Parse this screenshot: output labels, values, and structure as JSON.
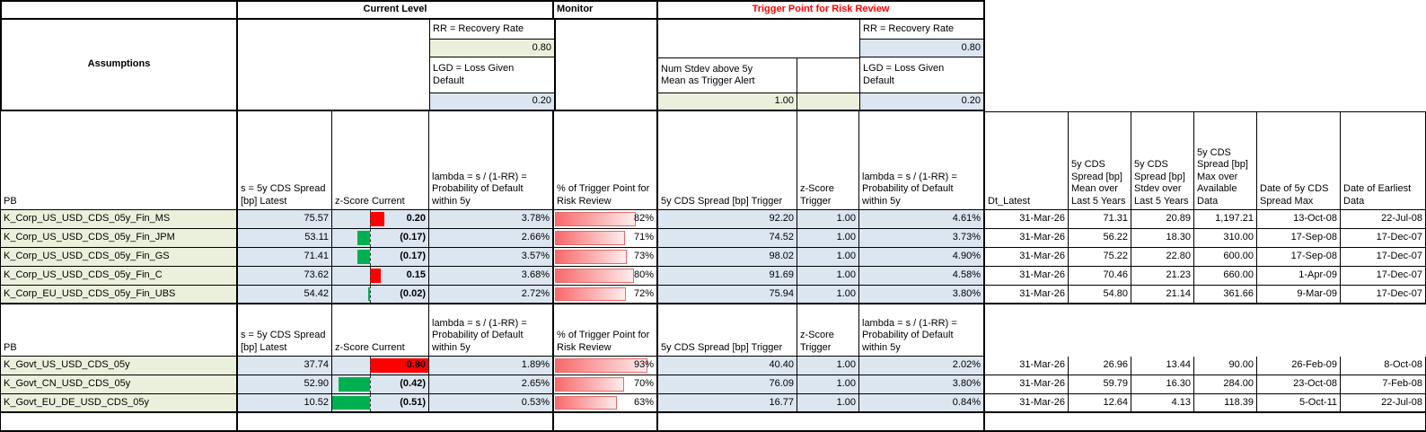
{
  "top": {
    "current_level": "Current Level",
    "monitor": "Monitor",
    "trigger_point": "Trigger Point for Risk Review"
  },
  "assumptions": {
    "title": "Assumptions",
    "current": {
      "rr_label": "RR = Recovery Rate",
      "rr_value": "0.80",
      "lgd_label": "LGD = Loss Given Default",
      "lgd_value": "0.20"
    },
    "monitor_block": {
      "stdev_label": "Num Stdev above 5y Mean as Trigger Alert",
      "stdev_value": "1.00"
    },
    "trigger": {
      "rr_label": "RR = Recovery Rate",
      "rr_value": "0.80",
      "lgd_label": "LGD = Loss Given Default",
      "lgd_value": "0.20"
    }
  },
  "columns": {
    "pb": "PB",
    "spread_latest": "s = 5y CDS Spread [bp] Latest",
    "zscore_current": "z-Score Current",
    "lambda": "lambda = s / (1-RR) = Probability of Default within 5y",
    "pct_trigger": "% of Trigger Point for Risk Review",
    "spread_trigger": "5y CDS Spread [bp] Trigger",
    "zscore_trigger": "z-Score Trigger",
    "lambda_trigger": "lambda = s / (1-RR) = Probability of Default within 5y",
    "dt_latest": "Dt_Latest",
    "mean_5y": "5y CDS Spread [bp] Mean over Last 5 Years",
    "stdev_5y": "5y CDS Spread [bp] Stdev over Last 5 Years",
    "max": "5y CDS Spread [bp] Max over Available Data",
    "date_max": "Date of 5y CDS Spread Max",
    "date_earliest": "Date of Earliest Data"
  },
  "zscore_axis": {
    "min": -0.51,
    "max": 0.8
  },
  "colors": {
    "khaki": "#EBF0DC",
    "blue": "#DCE6F1",
    "bar_positive": "#FF0000",
    "bar_negative": "#00B050",
    "pct_bar": "#F8696B",
    "trigger_header_red": "#FF0000"
  },
  "groups": [
    {
      "rows": [
        {
          "name": "K_Corp_US_USD_CDS_05y_Fin_MS",
          "spread": "75.57",
          "z": 0.2,
          "z_text": "0.20",
          "lambda": "3.78%",
          "pct": 82,
          "pct_text": "82%",
          "trigger": "92.20",
          "z_trigger": "1.00",
          "lambda_trigger": "4.61%",
          "dt_latest": "31-Mar-26",
          "mean_5y": "71.31",
          "stdev_5y": "20.89",
          "max": "1,197.21",
          "date_max": "13-Oct-08",
          "date_earliest": "22-Jul-08"
        },
        {
          "name": "K_Corp_US_USD_CDS_05y_Fin_JPM",
          "spread": "53.11",
          "z": -0.17,
          "z_text": "(0.17)",
          "lambda": "2.66%",
          "pct": 71,
          "pct_text": "71%",
          "trigger": "74.52",
          "z_trigger": "1.00",
          "lambda_trigger": "3.73%",
          "dt_latest": "31-Mar-26",
          "mean_5y": "56.22",
          "stdev_5y": "18.30",
          "max": "310.00",
          "date_max": "17-Sep-08",
          "date_earliest": "17-Dec-07"
        },
        {
          "name": "K_Corp_US_USD_CDS_05y_Fin_GS",
          "spread": "71.41",
          "z": -0.17,
          "z_text": "(0.17)",
          "lambda": "3.57%",
          "pct": 73,
          "pct_text": "73%",
          "trigger": "98.02",
          "z_trigger": "1.00",
          "lambda_trigger": "4.90%",
          "dt_latest": "31-Mar-26",
          "mean_5y": "75.22",
          "stdev_5y": "22.80",
          "max": "600.00",
          "date_max": "17-Sep-08",
          "date_earliest": "17-Dec-07"
        },
        {
          "name": "K_Corp_US_USD_CDS_05y_Fin_C",
          "spread": "73.62",
          "z": 0.15,
          "z_text": "0.15",
          "lambda": "3.68%",
          "pct": 80,
          "pct_text": "80%",
          "trigger": "91.69",
          "z_trigger": "1.00",
          "lambda_trigger": "4.58%",
          "dt_latest": "31-Mar-26",
          "mean_5y": "70.46",
          "stdev_5y": "21.23",
          "max": "660.00",
          "date_max": "1-Apr-09",
          "date_earliest": "17-Dec-07"
        },
        {
          "name": "K_Corp_EU_USD_CDS_05y_Fin_UBS",
          "spread": "54.42",
          "z": -0.02,
          "z_text": "(0.02)",
          "lambda": "2.72%",
          "pct": 72,
          "pct_text": "72%",
          "trigger": "75.94",
          "z_trigger": "1.00",
          "lambda_trigger": "3.80%",
          "dt_latest": "31-Mar-26",
          "mean_5y": "54.80",
          "stdev_5y": "21.14",
          "max": "361.66",
          "date_max": "9-Mar-09",
          "date_earliest": "17-Dec-07"
        }
      ]
    },
    {
      "rows": [
        {
          "name": "K_Govt_US_USD_CDS_05y",
          "spread": "37.74",
          "z": 0.8,
          "z_text": "0.80",
          "lambda": "1.89%",
          "pct": 93,
          "pct_text": "93%",
          "trigger": "40.40",
          "z_trigger": "1.00",
          "lambda_trigger": "2.02%",
          "dt_latest": "31-Mar-26",
          "mean_5y": "26.96",
          "stdev_5y": "13.44",
          "max": "90.00",
          "date_max": "26-Feb-09",
          "date_earliest": "8-Oct-08"
        },
        {
          "name": "K_Govt_CN_USD_CDS_05y",
          "spread": "52.90",
          "z": -0.42,
          "z_text": "(0.42)",
          "lambda": "2.65%",
          "pct": 70,
          "pct_text": "70%",
          "trigger": "76.09",
          "z_trigger": "1.00",
          "lambda_trigger": "3.80%",
          "dt_latest": "31-Mar-26",
          "mean_5y": "59.79",
          "stdev_5y": "16.30",
          "max": "284.00",
          "date_max": "23-Oct-08",
          "date_earliest": "7-Feb-08"
        },
        {
          "name": "K_Govt_EU_DE_USD_CDS_05y",
          "spread": "10.52",
          "z": -0.51,
          "z_text": "(0.51)",
          "lambda": "0.53%",
          "pct": 63,
          "pct_text": "63%",
          "trigger": "16.77",
          "z_trigger": "1.00",
          "lambda_trigger": "0.84%",
          "dt_latest": "31-Mar-26",
          "mean_5y": "12.64",
          "stdev_5y": "4.13",
          "max": "118.39",
          "date_max": "5-Oct-11",
          "date_earliest": "22-Jul-08"
        }
      ]
    }
  ]
}
